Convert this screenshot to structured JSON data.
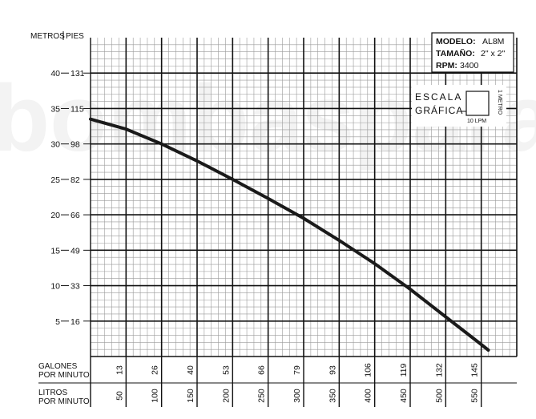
{
  "chart_data": {
    "type": "line",
    "watermark": "bombasparapumps",
    "y_axis": {
      "label_meters": "METROS",
      "label_feet": "PIES",
      "ticks": [
        {
          "m": 5,
          "ft": 16
        },
        {
          "m": 10,
          "ft": 33
        },
        {
          "m": 15,
          "ft": 49
        },
        {
          "m": 20,
          "ft": 66
        },
        {
          "m": 25,
          "ft": 82
        },
        {
          "m": 30,
          "ft": 98
        },
        {
          "m": 35,
          "ft": 115
        },
        {
          "m": 40,
          "ft": 131
        }
      ],
      "ylim_m": [
        0,
        45
      ],
      "unit_m": "m"
    },
    "x_axis": {
      "gpm_label_line1": "GALONES",
      "gpm_label_line2": "POR MINUTO",
      "lpm_label_line1": "LITROS",
      "lpm_label_line2": "POR MINUTO",
      "ticks": [
        {
          "lpm": 50,
          "gpm": 13
        },
        {
          "lpm": 100,
          "gpm": 26
        },
        {
          "lpm": 150,
          "gpm": 40
        },
        {
          "lpm": 200,
          "gpm": 53
        },
        {
          "lpm": 250,
          "gpm": 66
        },
        {
          "lpm": 300,
          "gpm": 79
        },
        {
          "lpm": 350,
          "gpm": 93
        },
        {
          "lpm": 400,
          "gpm": 106
        },
        {
          "lpm": 450,
          "gpm": 119
        },
        {
          "lpm": 500,
          "gpm": 132
        },
        {
          "lpm": 550,
          "gpm": 145
        }
      ],
      "xlim_lpm": [
        0,
        600
      ],
      "unit": "LPM"
    },
    "grid": true,
    "series": [
      {
        "x_lpm": [
          0,
          50,
          100,
          150,
          200,
          250,
          300,
          350,
          400,
          450,
          500,
          550,
          560
        ],
        "y_m": [
          33.5,
          32.1,
          30.0,
          27.6,
          25.0,
          22.3,
          19.5,
          16.4,
          13.1,
          9.5,
          5.6,
          1.7,
          0.9
        ]
      }
    ],
    "info_box": {
      "model_label": "MODELO:",
      "model_value": "AL8M",
      "size_label": "TAMAÑO:",
      "size_value": "2\" x 2\"",
      "rpm_label": "RPM:",
      "rpm_value": "3400"
    },
    "scale_legend": {
      "line1": "ESCALA",
      "line2": "GRÁFICA",
      "width_label": "10 LPM",
      "height_label": "1 METRO"
    }
  }
}
